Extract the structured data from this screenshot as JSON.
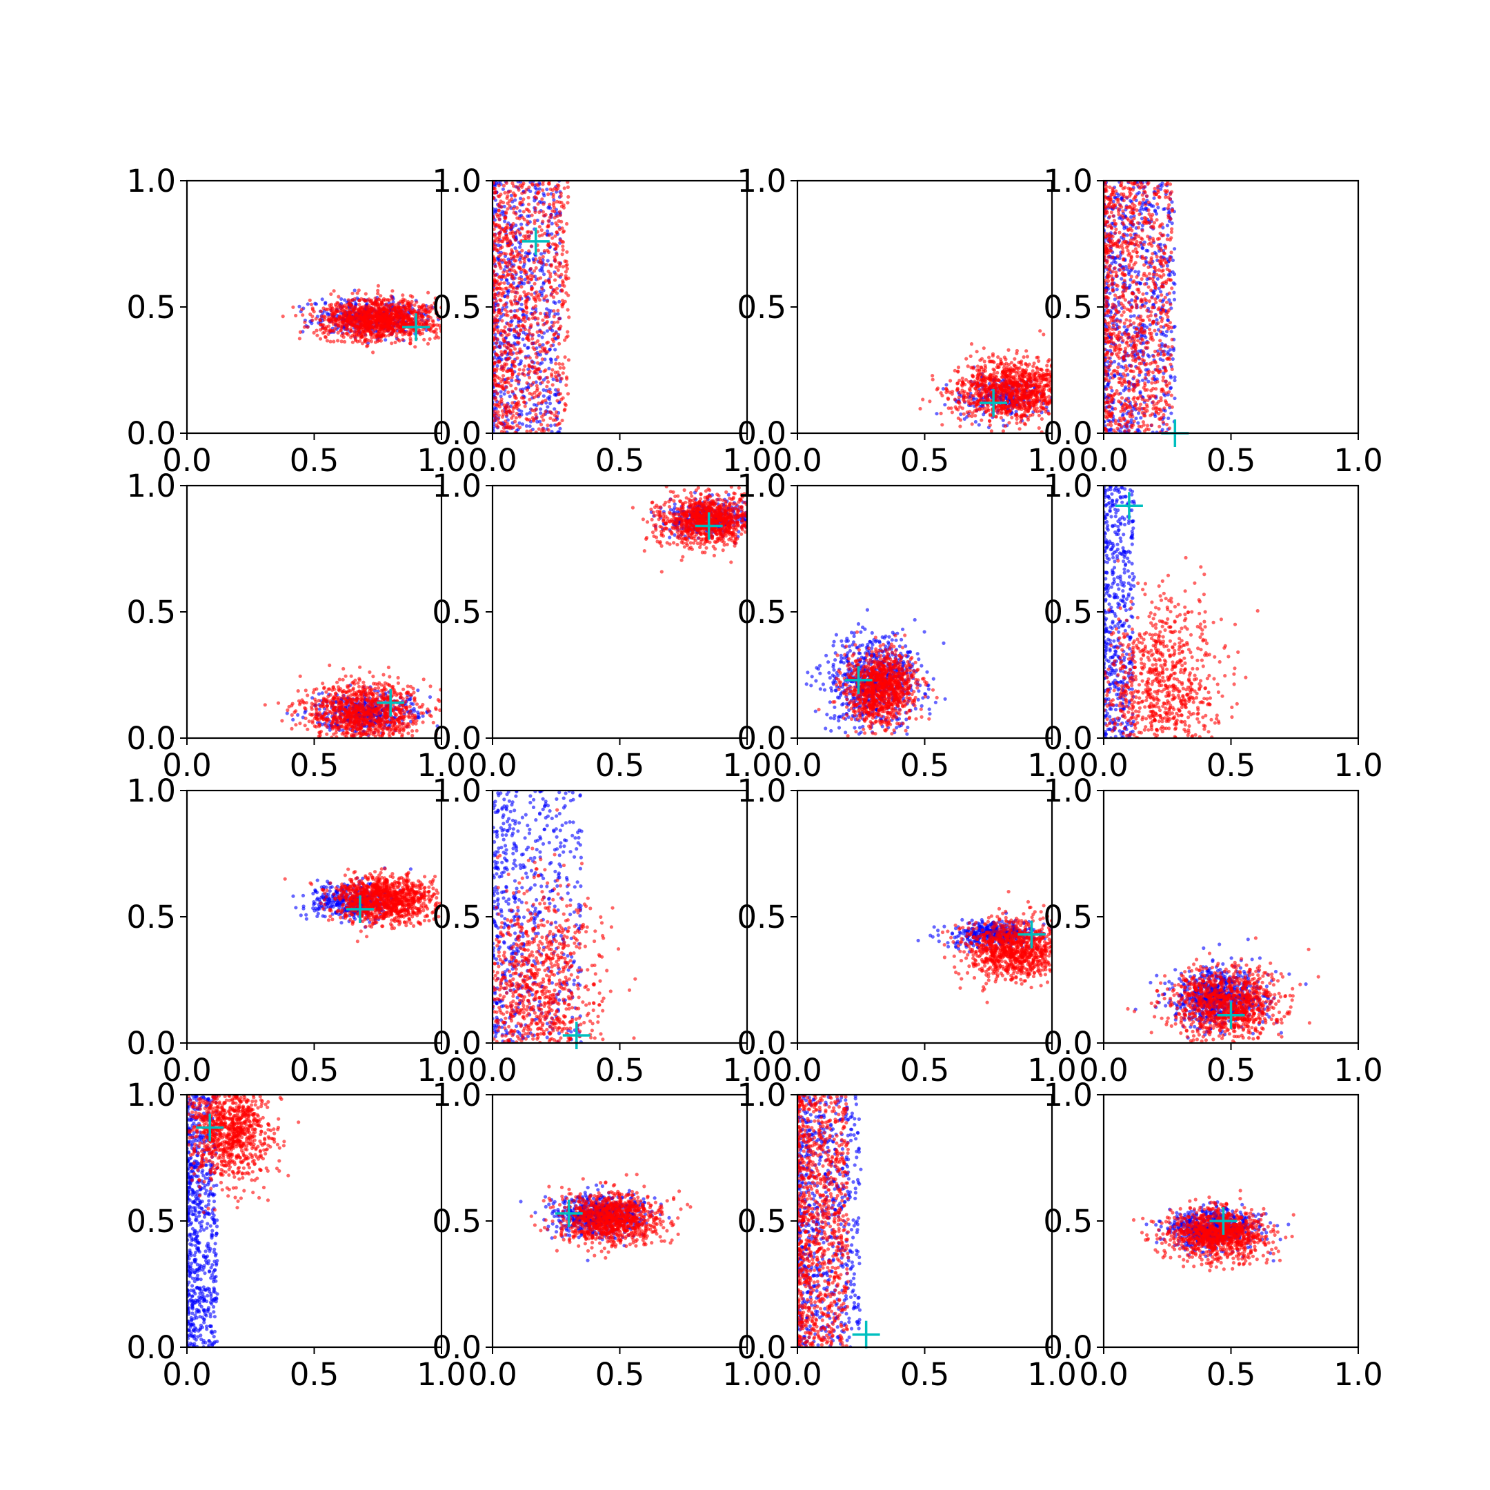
{
  "figure": {
    "background": "#ffffff",
    "grid": false,
    "layout": "4x4 subplots",
    "colors": {
      "series_a": "#0000ff",
      "series_b": "#ff0000",
      "marker": "#00bfbf",
      "axis": "#000000"
    }
  },
  "chart_data": [
    {
      "type": "scatter",
      "xlim": [
        0,
        1
      ],
      "ylim": [
        0,
        1
      ],
      "xticks": [
        "0.0",
        "0.5",
        "1.0"
      ],
      "yticks": [
        "0.0",
        "0.5",
        "1.0"
      ],
      "series": [
        {
          "values": {
            "kind": "blob",
            "cx": 0.72,
            "cy": 0.46,
            "sx": 0.11,
            "sy": 0.035,
            "n": 420
          }
        },
        {
          "values": {
            "kind": "blob",
            "cx": 0.76,
            "cy": 0.45,
            "sx": 0.12,
            "sy": 0.04,
            "n": 1200
          }
        }
      ],
      "marker": {
        "x": 0.9,
        "y": 0.42
      }
    },
    {
      "type": "scatter",
      "xlim": [
        0,
        1
      ],
      "ylim": [
        0,
        1
      ],
      "xticks": [
        "0.0",
        "0.5",
        "1.0"
      ],
      "yticks": [
        "0.0",
        "0.5",
        "1.0"
      ],
      "series": [
        {
          "values": {
            "kind": "uniform",
            "x0": 0.0,
            "x1": 0.27,
            "y0": 0.0,
            "y1": 1.0,
            "n": 650
          }
        },
        {
          "values": {
            "kind": "uniform",
            "x0": 0.0,
            "x1": 0.3,
            "y0": 0.0,
            "y1": 1.0,
            "n": 1000
          }
        }
      ],
      "marker": {
        "x": 0.17,
        "y": 0.76
      }
    },
    {
      "type": "scatter",
      "xlim": [
        0,
        1
      ],
      "ylim": [
        0,
        1
      ],
      "xticks": [
        "0.0",
        "0.5",
        "1.0"
      ],
      "yticks": [
        "0.0",
        "0.5",
        "1.0"
      ],
      "series": [
        {
          "values": {
            "kind": "blob",
            "cx": 0.8,
            "cy": 0.14,
            "sx": 0.08,
            "sy": 0.04,
            "n": 250
          }
        },
        {
          "values": {
            "kind": "blob",
            "cx": 0.85,
            "cy": 0.17,
            "sx": 0.12,
            "sy": 0.06,
            "n": 1100
          }
        }
      ],
      "marker": {
        "x": 0.77,
        "y": 0.12
      }
    },
    {
      "type": "scatter",
      "xlim": [
        0,
        1
      ],
      "ylim": [
        0,
        1
      ],
      "xticks": [
        "0.0",
        "0.5",
        "1.0"
      ],
      "yticks": [
        "0.0",
        "0.5",
        "1.0"
      ],
      "series": [
        {
          "values": {
            "kind": "uniform",
            "x0": 0.0,
            "x1": 0.28,
            "y0": 0.0,
            "y1": 1.0,
            "n": 700
          }
        },
        {
          "values": {
            "kind": "uniform",
            "x0": 0.0,
            "x1": 0.27,
            "y0": 0.0,
            "y1": 1.0,
            "n": 1000
          }
        }
      ],
      "marker": {
        "x": 0.28,
        "y": 0.0
      }
    },
    {
      "type": "scatter",
      "xlim": [
        0,
        1
      ],
      "ylim": [
        0,
        1
      ],
      "xticks": [
        "0.0",
        "0.5",
        "1.0"
      ],
      "yticks": [
        "0.0",
        "0.5",
        "1.0"
      ],
      "series": [
        {
          "values": {
            "kind": "blob",
            "cx": 0.7,
            "cy": 0.1,
            "sx": 0.1,
            "sy": 0.04,
            "n": 400
          }
        },
        {
          "values": {
            "kind": "blob",
            "cx": 0.7,
            "cy": 0.1,
            "sx": 0.12,
            "sy": 0.06,
            "n": 1000
          }
        }
      ],
      "marker": {
        "x": 0.8,
        "y": 0.14
      }
    },
    {
      "type": "scatter",
      "xlim": [
        0,
        1
      ],
      "ylim": [
        0,
        1
      ],
      "xticks": [
        "0.0",
        "0.5",
        "1.0"
      ],
      "yticks": [
        "0.0",
        "0.5",
        "1.0"
      ],
      "series": [
        {
          "values": {
            "kind": "blob",
            "cx": 0.85,
            "cy": 0.87,
            "sx": 0.08,
            "sy": 0.035,
            "n": 350
          }
        },
        {
          "values": {
            "kind": "blob",
            "cx": 0.85,
            "cy": 0.86,
            "sx": 0.1,
            "sy": 0.05,
            "n": 1000
          }
        }
      ],
      "marker": {
        "x": 0.85,
        "y": 0.84
      }
    },
    {
      "type": "scatter",
      "xlim": [
        0,
        1
      ],
      "ylim": [
        0,
        1
      ],
      "xticks": [
        "0.0",
        "0.5",
        "1.0"
      ],
      "yticks": [
        "0.0",
        "0.5",
        "1.0"
      ],
      "series": [
        {
          "values": {
            "kind": "blob",
            "cx": 0.3,
            "cy": 0.22,
            "sx": 0.09,
            "sy": 0.09,
            "n": 700
          }
        },
        {
          "values": {
            "kind": "blob",
            "cx": 0.33,
            "cy": 0.2,
            "sx": 0.07,
            "sy": 0.07,
            "n": 1000
          }
        }
      ],
      "marker": {
        "x": 0.24,
        "y": 0.23
      }
    },
    {
      "type": "scatter",
      "xlim": [
        0,
        1
      ],
      "ylim": [
        0,
        1
      ],
      "xticks": [
        "0.0",
        "0.5",
        "1.0"
      ],
      "yticks": [
        "0.0",
        "0.5",
        "1.0"
      ],
      "series": [
        {
          "values": {
            "kind": "uniform",
            "x0": 0.0,
            "x1": 0.12,
            "y0": 0.0,
            "y1": 1.0,
            "n": 500
          }
        },
        {
          "values": {
            "kind": "blob",
            "cx": 0.22,
            "cy": 0.2,
            "sx": 0.12,
            "sy": 0.18,
            "n": 900
          }
        }
      ],
      "marker": {
        "x": 0.1,
        "y": 0.92
      }
    },
    {
      "type": "scatter",
      "xlim": [
        0,
        1
      ],
      "ylim": [
        0,
        1
      ],
      "xticks": [
        "0.0",
        "0.5",
        "1.0"
      ],
      "yticks": [
        "0.0",
        "0.5",
        "1.0"
      ],
      "series": [
        {
          "values": {
            "kind": "blob",
            "cx": 0.65,
            "cy": 0.56,
            "sx": 0.08,
            "sy": 0.035,
            "n": 380
          }
        },
        {
          "values": {
            "kind": "blob",
            "cx": 0.78,
            "cy": 0.57,
            "sx": 0.1,
            "sy": 0.045,
            "n": 1100
          }
        }
      ],
      "marker": {
        "x": 0.68,
        "y": 0.53
      }
    },
    {
      "type": "scatter",
      "xlim": [
        0,
        1
      ],
      "ylim": [
        0,
        1
      ],
      "xticks": [
        "0.0",
        "0.5",
        "1.0"
      ],
      "yticks": [
        "0.0",
        "0.5",
        "1.0"
      ],
      "series": [
        {
          "values": {
            "kind": "uniform",
            "x0": 0.0,
            "x1": 0.35,
            "y0": 0.0,
            "y1": 1.0,
            "n": 600
          }
        },
        {
          "values": {
            "kind": "blob",
            "cx": 0.17,
            "cy": 0.2,
            "sx": 0.12,
            "sy": 0.2,
            "n": 1000
          }
        }
      ],
      "marker": {
        "x": 0.33,
        "y": 0.03
      }
    },
    {
      "type": "scatter",
      "xlim": [
        0,
        1
      ],
      "ylim": [
        0,
        1
      ],
      "xticks": [
        "0.0",
        "0.5",
        "1.0"
      ],
      "yticks": [
        "0.0",
        "0.5",
        "1.0"
      ],
      "series": [
        {
          "values": {
            "kind": "blob",
            "cx": 0.78,
            "cy": 0.43,
            "sx": 0.08,
            "sy": 0.025,
            "n": 400
          }
        },
        {
          "values": {
            "kind": "blob",
            "cx": 0.85,
            "cy": 0.37,
            "sx": 0.1,
            "sy": 0.06,
            "n": 1000
          }
        }
      ],
      "marker": {
        "x": 0.92,
        "y": 0.43
      }
    },
    {
      "type": "scatter",
      "xlim": [
        0,
        1
      ],
      "ylim": [
        0,
        1
      ],
      "xticks": [
        "0.0",
        "0.5",
        "1.0"
      ],
      "yticks": [
        "0.0",
        "0.5",
        "1.0"
      ],
      "series": [
        {
          "values": {
            "kind": "blob",
            "cx": 0.45,
            "cy": 0.18,
            "sx": 0.09,
            "sy": 0.06,
            "n": 700
          }
        },
        {
          "values": {
            "kind": "blob",
            "cx": 0.48,
            "cy": 0.16,
            "sx": 0.11,
            "sy": 0.07,
            "n": 1000
          }
        }
      ],
      "marker": {
        "x": 0.5,
        "y": 0.11
      }
    },
    {
      "type": "scatter",
      "xlim": [
        0,
        1
      ],
      "ylim": [
        0,
        1
      ],
      "xticks": [
        "0.0",
        "0.5",
        "1.0"
      ],
      "yticks": [
        "0.0",
        "0.5",
        "1.0"
      ],
      "series": [
        {
          "values": {
            "kind": "uniform",
            "x0": 0.0,
            "x1": 0.12,
            "y0": 0.0,
            "y1": 1.0,
            "n": 700
          }
        },
        {
          "values": {
            "kind": "blob",
            "cx": 0.16,
            "cy": 0.86,
            "sx": 0.08,
            "sy": 0.1,
            "n": 1000
          }
        }
      ],
      "marker": {
        "x": 0.09,
        "y": 0.87
      }
    },
    {
      "type": "scatter",
      "xlim": [
        0,
        1
      ],
      "ylim": [
        0,
        1
      ],
      "xticks": [
        "0.0",
        "0.5",
        "1.0"
      ],
      "yticks": [
        "0.0",
        "0.5",
        "1.0"
      ],
      "series": [
        {
          "values": {
            "kind": "blob",
            "cx": 0.42,
            "cy": 0.52,
            "sx": 0.09,
            "sy": 0.04,
            "n": 600
          }
        },
        {
          "values": {
            "kind": "blob",
            "cx": 0.47,
            "cy": 0.51,
            "sx": 0.1,
            "sy": 0.05,
            "n": 1000
          }
        }
      ],
      "marker": {
        "x": 0.3,
        "y": 0.53
      }
    },
    {
      "type": "scatter",
      "xlim": [
        0,
        1
      ],
      "ylim": [
        0,
        1
      ],
      "xticks": [
        "0.0",
        "0.5",
        "1.0"
      ],
      "yticks": [
        "0.0",
        "0.5",
        "1.0"
      ],
      "series": [
        {
          "values": {
            "kind": "uniform",
            "x0": 0.0,
            "x1": 0.25,
            "y0": 0.0,
            "y1": 1.0,
            "n": 700
          }
        },
        {
          "values": {
            "kind": "uniform",
            "x0": 0.0,
            "x1": 0.2,
            "y0": 0.0,
            "y1": 1.0,
            "n": 1000
          }
        }
      ],
      "marker": {
        "x": 0.27,
        "y": 0.05
      }
    },
    {
      "type": "scatter",
      "xlim": [
        0,
        1
      ],
      "ylim": [
        0,
        1
      ],
      "xticks": [
        "0.0",
        "0.5",
        "1.0"
      ],
      "yticks": [
        "0.0",
        "0.5",
        "1.0"
      ],
      "series": [
        {
          "values": {
            "kind": "blob",
            "cx": 0.43,
            "cy": 0.47,
            "sx": 0.09,
            "sy": 0.04,
            "n": 600
          }
        },
        {
          "values": {
            "kind": "blob",
            "cx": 0.45,
            "cy": 0.45,
            "sx": 0.1,
            "sy": 0.05,
            "n": 1000
          }
        }
      ],
      "marker": {
        "x": 0.47,
        "y": 0.5
      }
    }
  ]
}
